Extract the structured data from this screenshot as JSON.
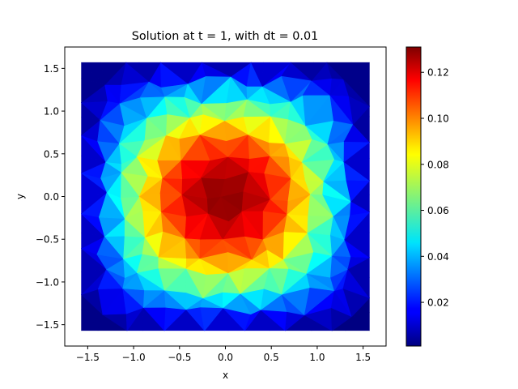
{
  "chart_data": {
    "type": "heatmap",
    "title": "Solution at t = 1, with dt = 0.01",
    "xlabel": "x",
    "ylabel": "y",
    "xlim": [
      -1.75,
      1.75
    ],
    "ylim": [
      -1.75,
      1.75
    ],
    "domain": [
      -1.5708,
      1.5708
    ],
    "xticks": [
      "−1.5",
      "−1.0",
      "−0.5",
      "0.0",
      "0.5",
      "1.0",
      "1.5"
    ],
    "xtick_values": [
      -1.5,
      -1.0,
      -0.5,
      0.0,
      0.5,
      1.0,
      1.5
    ],
    "yticks": [
      "−1.5",
      "−1.0",
      "−0.5",
      "0.0",
      "0.5",
      "1.0",
      "1.5"
    ],
    "ytick_values": [
      -1.5,
      -1.0,
      -0.5,
      0.0,
      0.5,
      1.0,
      1.5
    ],
    "colormap": "jet",
    "color_range": [
      0.001,
      0.131
    ],
    "colorbar_ticks": [
      "0.02",
      "0.04",
      "0.06",
      "0.08",
      "0.10",
      "0.12"
    ],
    "colorbar_tick_values": [
      0.02,
      0.04,
      0.06,
      0.08,
      0.1,
      0.12
    ],
    "field": "0.131 * cos(x) * cos(y) on a triangulated mesh",
    "peak_value": 0.131,
    "grid": false
  }
}
